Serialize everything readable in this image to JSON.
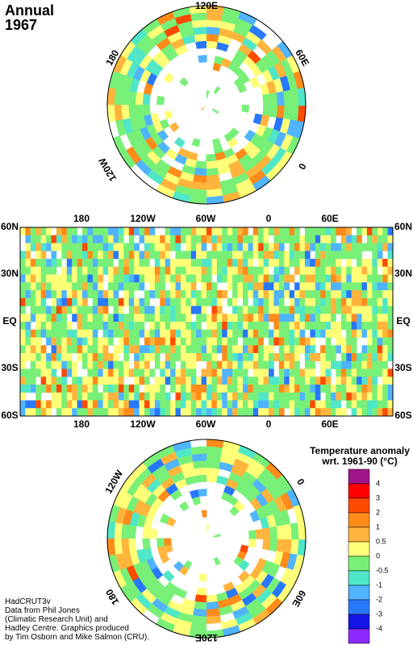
{
  "header": {
    "title": "Annual",
    "year": "1967"
  },
  "north_polar": {
    "labels": [
      "120E",
      "60E",
      "0",
      "120W",
      "180"
    ]
  },
  "world_map": {
    "top_labels": [
      "180",
      "120W",
      "60W",
      "0",
      "60E"
    ],
    "bottom_labels": [
      "180",
      "120W",
      "60W",
      "0",
      "60E"
    ],
    "left_labels": [
      "60N",
      "30N",
      "EQ",
      "30S",
      "60S"
    ],
    "right_labels": [
      "60N",
      "30N",
      "EQ",
      "30S",
      "60S"
    ]
  },
  "south_polar": {
    "labels": [
      "120W",
      "0",
      "60E",
      "120E",
      "180"
    ]
  },
  "legend": {
    "title": "Temperature anomaly",
    "subtitle": "wrt. 1961-90  (°C)",
    "ticks": [
      4,
      3,
      2,
      1,
      0.5,
      0,
      -0.5,
      -1,
      -2,
      -3,
      -4
    ],
    "colors": [
      "#a0148c",
      "#ff0000",
      "#ff4a00",
      "#ff8c1a",
      "#ffb43c",
      "#ffff78",
      "#78f078",
      "#50e6c8",
      "#50b4ff",
      "#2878ff",
      "#1414e6",
      "#8c28ff"
    ]
  },
  "credits": [
    "HadCRUT3v",
    "Data from Phil Jones",
    "(Climatic Research Unit) and",
    "Hadley Centre.  Graphics produced",
    "by Tim Osborn and Mike Salmon (CRU)."
  ]
}
